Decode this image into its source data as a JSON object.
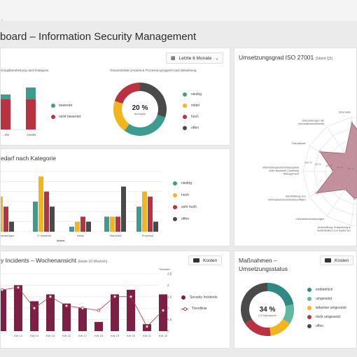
{
  "header": {
    "breadcrumb": "e",
    "title": "board – Information Security Management"
  },
  "filter": {
    "label": "Letzte 6 Monate"
  },
  "colors": {
    "teal": "#3d9c8f",
    "crimson": "#b8323f",
    "amber": "#f2b51c",
    "dark": "#4a4a4a",
    "maroon": "#7b1f45",
    "radar": "#b87c8c"
  },
  "status_card": {
    "subtitle_left": "tzungsbearbeitung nach Kategorie",
    "subtitle_right": "Gesamtrisiken (Assets & Prozesse) gruppiert nach Bewertung",
    "legend_left": [
      "bewertet",
      "nicht bewertet"
    ],
    "donut_center": "20 %",
    "donut_sub": "Niedrigkeit",
    "legend_right": [
      "niedrig",
      "mittel",
      "hoch",
      "offen"
    ]
  },
  "measure_card": {
    "title": "edarf nach Kategorie",
    "axis_label": "Assets",
    "legend": [
      "niedrig",
      "hoch",
      "sehr hoch",
      "offen"
    ]
  },
  "incidents_card": {
    "title": "y Incidents – Wochenansicht",
    "title_note": "(letzte 10 Wochen)",
    "button": "Kosten",
    "axis_right_title": "Trendwert",
    "legend": [
      "Security Incidents",
      "Trendlinie"
    ]
  },
  "iso_card": {
    "title": "Umsetzungsgrad ISO 27001",
    "title_note": "(Stand Q3)",
    "labels": [
      "Informatio",
      "Überprüfungen der Informationssicherheit",
      "Compliance",
      "Informationssicherheitsaspekte beim Business Continuity Management",
      "Handhabung von Informationssicherheitsvorfällen",
      "Lieferantenbeziehungen",
      "Anschaffung, Entwicklung & Instandhalten von Systemen",
      "Kommunikationssicherheit"
    ],
    "tick_labels": [
      "100 %",
      "80 %",
      "60 %",
      "40 %",
      "20 %"
    ]
  },
  "massnahmen_card": {
    "title_line1": "Maßnahmen –",
    "title_line2": "Umsetzungsstatus",
    "button": "Kosten",
    "donut_center": "34 %",
    "donut_sub": "123 Maßnahmen",
    "legend": [
      "entbehrlich",
      "umgesetzt",
      "teilweise umgesetzt",
      "nicht umgesetzt",
      "offen"
    ]
  },
  "chart_data": [
    {
      "type": "bar",
      "title": "",
      "categories": [
        "...rter",
        "Assets"
      ],
      "series": [
        {
          "name": "bewertet",
          "values": [
            1,
            4
          ]
        },
        {
          "name": "nicht bewertet",
          "values": [
            5,
            3
          ]
        }
      ]
    },
    {
      "type": "pie",
      "title": "Gesamtrisiken (Assets & Prozesse) gruppiert nach Bewertung",
      "categories": [
        "niedrig",
        "mittel",
        "hoch",
        "offen"
      ],
      "values": [
        20,
        30,
        20,
        30
      ]
    },
    {
      "type": "bar",
      "title": "edarf nach Kategorie",
      "categories": [
        "...sanwendungen",
        "IT-Systeme",
        "Netze",
        "Standorte",
        "Prozesse"
      ],
      "series": [
        {
          "name": "niedrig",
          "values": [
            3.0,
            3.0,
            0.5,
            1.5,
            2.5
          ]
        },
        {
          "name": "hoch",
          "values": [
            3.5,
            5.5,
            1.0,
            1.5,
            4.0
          ]
        },
        {
          "name": "sehr hoch",
          "values": [
            2.5,
            4.0,
            1.5,
            1.5,
            3.5
          ]
        },
        {
          "name": "offen",
          "values": [
            1.0,
            2.5,
            1.0,
            4.5,
            1.0
          ]
        }
      ]
    },
    {
      "type": "bar",
      "title": "y Incidents – Wochenansicht",
      "categories": [
        "",
        "KW 13",
        "KW 14",
        "KW 15",
        "KW 16",
        "KW 17",
        "KW 18",
        "KW 19",
        "KW 20",
        "KW 21",
        "KW 22"
      ],
      "series": [
        {
          "name": "Security Incidents",
          "values": [
            1.8,
            2.0,
            1.3,
            1.6,
            1.2,
            1.0,
            0.4,
            1.6,
            1.8,
            0.3,
            1.6
          ]
        },
        {
          "name": "Trendlinie",
          "type": "line",
          "values": [
            1.8,
            1.9,
            1.0,
            1.5,
            1.1,
            1.0,
            0.9,
            1.5,
            1.5,
            0.2,
            0.9
          ]
        }
      ],
      "ylim": [
        0,
        2.5
      ],
      "yticks": [
        "2,5",
        "2",
        "1,5",
        "1",
        "0,5",
        "0"
      ]
    },
    {
      "type": "radar",
      "title": "Umsetzungsgrad ISO 27001",
      "categories": [
        "Informatio",
        "Überprüfungen der Informationssicherheit",
        "Compliance",
        "Informationssicherheitsaspekte beim Business Continuity Management",
        "Handhabung von Informationssicherheitsvorfällen",
        "Lieferantenbeziehungen",
        "Anschaffung, Entwicklung & Instandhalten von Systemen",
        "Kommunikationssicherheit"
      ],
      "values": [
        90,
        40,
        78,
        45,
        85,
        40,
        50,
        45
      ],
      "ylim": [
        0,
        100
      ]
    },
    {
      "type": "pie",
      "title": "Maßnahmen – Umsetzungsstatus",
      "categories": [
        "entbehrlich",
        "umgesetzt",
        "teilweise umgesetzt",
        "nicht umgesetzt",
        "offen"
      ],
      "values": [
        22,
        12,
        14,
        18,
        34
      ]
    }
  ]
}
